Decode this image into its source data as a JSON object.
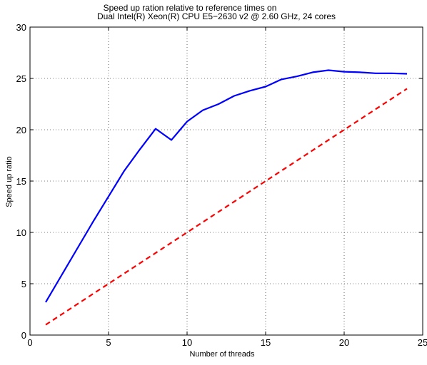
{
  "chart_data": {
    "type": "line",
    "title_lines": [
      "Speed up ration relative to reference times on",
      "Dual Intel(R) Xeon(R) CPU E5−2630 v2 @ 2.60 GHz, 24 cores"
    ],
    "xlabel": "Number of threads",
    "ylabel": "Speed up ratio",
    "xlim": [
      0,
      25
    ],
    "ylim": [
      0,
      30
    ],
    "xticks": [
      0,
      5,
      10,
      15,
      20,
      25
    ],
    "yticks": [
      0,
      5,
      10,
      15,
      20,
      25,
      30
    ],
    "grid": true,
    "legend": "none",
    "series": [
      {
        "color": "#0000ff",
        "style": "solid",
        "x": [
          1,
          2,
          3,
          4,
          5,
          6,
          7,
          8,
          9,
          10,
          11,
          12,
          13,
          14,
          15,
          16,
          17,
          18,
          19,
          20,
          21,
          22,
          23,
          24
        ],
        "y": [
          3.2,
          5.8,
          8.4,
          11.0,
          13.5,
          16.0,
          18.1,
          20.1,
          19.0,
          20.8,
          21.9,
          22.5,
          23.3,
          23.8,
          24.2,
          24.9,
          25.2,
          25.6,
          25.8,
          25.65,
          25.6,
          25.5,
          25.5,
          25.45
        ]
      },
      {
        "color": "#ff0000",
        "style": "dashed",
        "x": [
          1,
          24
        ],
        "y": [
          1,
          24
        ]
      }
    ]
  }
}
